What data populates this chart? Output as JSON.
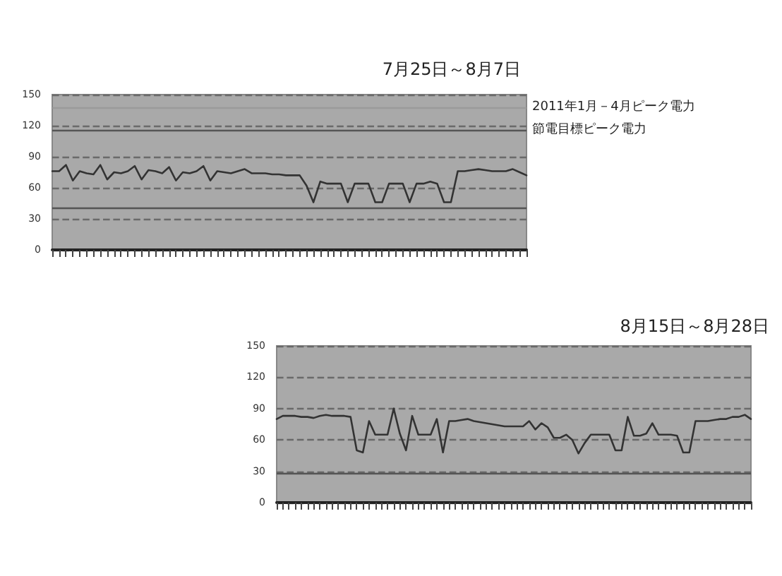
{
  "chart_data": [
    {
      "type": "line",
      "title": "7月25日～8月7日",
      "categories": [
        null,
        null,
        null,
        null,
        null,
        null,
        null,
        null,
        null,
        null,
        null,
        null,
        null,
        null,
        null,
        null,
        null,
        null,
        null,
        null,
        null,
        null,
        null,
        null,
        null,
        null,
        null,
        null,
        null,
        null,
        null,
        null,
        null,
        null,
        null,
        null,
        null,
        null,
        null,
        null,
        null,
        null,
        null,
        null,
        null,
        null,
        null,
        null,
        null,
        null,
        null,
        null,
        null,
        null,
        null,
        null,
        null,
        null,
        null,
        null,
        null,
        null,
        null,
        null,
        null,
        null,
        null,
        null,
        null,
        null
      ],
      "series": [
        {
          "color": "#333333",
          "values": [
            76,
            76,
            82,
            67,
            76,
            74,
            73,
            82,
            68,
            75,
            74,
            76,
            81,
            68,
            77,
            76,
            74,
            80,
            67,
            75,
            74,
            76,
            81,
            67,
            76,
            75,
            74,
            76,
            78,
            74,
            74,
            74,
            73,
            73,
            72,
            72,
            72,
            62,
            46,
            66,
            64,
            64,
            64,
            46,
            64,
            64,
            64,
            46,
            46,
            64,
            64,
            64,
            46,
            64,
            64,
            66,
            64,
            46,
            46,
            76,
            76,
            77,
            78,
            77,
            76,
            76,
            76,
            78,
            75,
            72
          ]
        }
      ],
      "ylim": [
        0,
        150
      ],
      "yticks": [
        0,
        30,
        60,
        90,
        120,
        150
      ],
      "grid": "y",
      "tick_labels": "y",
      "line_style": "solid",
      "ref_lines": [
        {
          "axis": "y",
          "value": 138,
          "label": "2011年1月－4月ピーク電力",
          "color": "#9a9a9a"
        },
        {
          "axis": "y",
          "value": 116,
          "label": "節電目標ピーク電力",
          "color": "#555555"
        },
        {
          "axis": "y",
          "value": 40,
          "color": "#555555"
        }
      ]
    },
    {
      "type": "line",
      "title": "8月15日～8月28日",
      "categories": [
        null,
        null,
        null,
        null,
        null,
        null,
        null,
        null,
        null,
        null,
        null,
        null,
        null,
        null,
        null,
        null,
        null,
        null,
        null,
        null,
        null,
        null,
        null,
        null,
        null,
        null,
        null,
        null,
        null,
        null,
        null,
        null,
        null,
        null,
        null,
        null,
        null,
        null,
        null,
        null,
        null,
        null,
        null,
        null,
        null,
        null,
        null,
        null,
        null,
        null,
        null,
        null,
        null,
        null,
        null,
        null,
        null,
        null,
        null,
        null,
        null,
        null,
        null,
        null,
        null,
        null,
        null,
        null,
        null,
        null,
        null,
        null,
        null,
        null,
        null,
        null,
        null,
        null
      ],
      "series": [
        {
          "color": "#333333",
          "values": [
            80,
            83,
            83,
            83,
            82,
            82,
            81,
            83,
            84,
            83,
            83,
            83,
            82,
            50,
            48,
            78,
            65,
            65,
            65,
            90,
            66,
            50,
            83,
            65,
            65,
            65,
            80,
            48,
            78,
            78,
            79,
            80,
            78,
            77,
            76,
            75,
            74,
            73,
            73,
            73,
            73,
            78,
            70,
            76,
            72,
            62,
            62,
            65,
            60,
            47,
            57,
            65,
            65,
            65,
            65,
            50,
            50,
            82,
            64,
            64,
            66,
            76,
            65,
            65,
            65,
            64,
            48,
            48,
            78,
            78,
            78,
            79,
            80,
            80,
            82,
            82,
            84,
            80
          ]
        }
      ],
      "ylim": [
        0,
        150
      ],
      "yticks": [
        0,
        30,
        60,
        90,
        120,
        150
      ],
      "grid": "y",
      "tick_labels": "y",
      "line_style": "solid",
      "ref_lines": [
        {
          "axis": "y",
          "value": 28,
          "color": "#555555"
        }
      ]
    }
  ]
}
